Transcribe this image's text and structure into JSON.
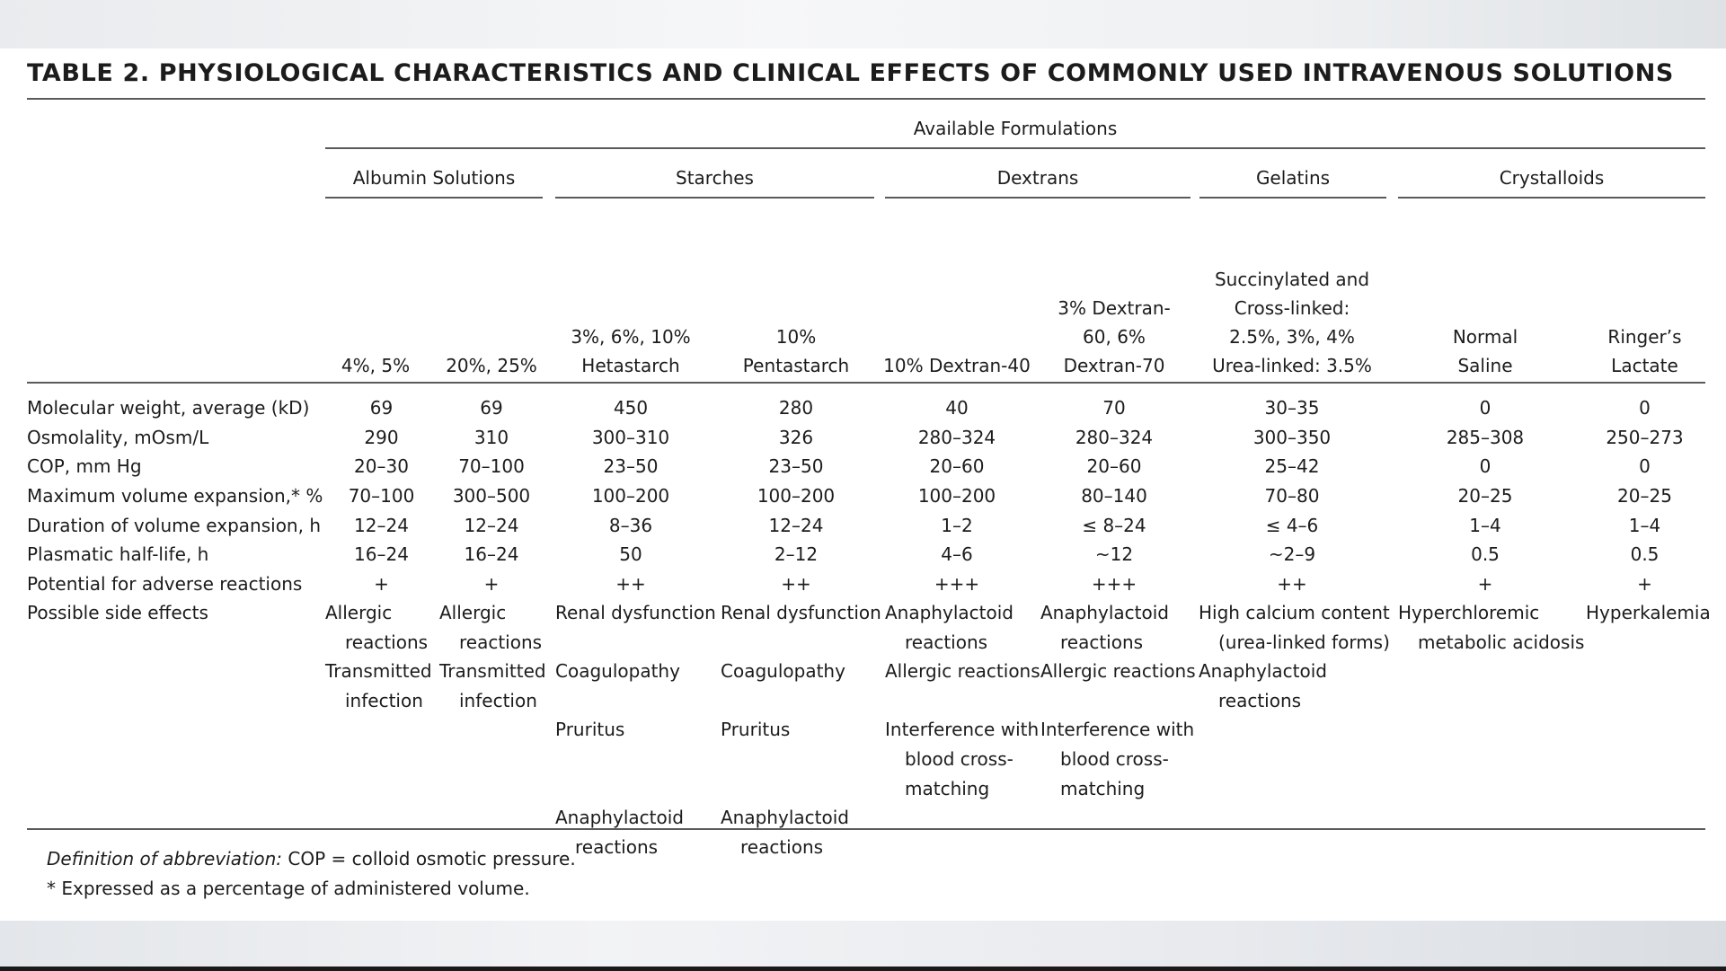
{
  "title": "TABLE 2. PHYSIOLOGICAL CHARACTERISTICS AND CLINICAL EFFECTS OF COMMONLY USED INTRAVENOUS SOLUTIONS",
  "super_header": "Available Formulations",
  "groups": [
    "Albumin Solutions",
    "Starches",
    "Dextrans",
    "Gelatins",
    "Crystalloids"
  ],
  "columns": [
    [
      "4%, 5%"
    ],
    [
      "20%, 25%"
    ],
    [
      "3%, 6%, 10%",
      "Hetastarch"
    ],
    [
      "10%",
      "Pentastarch"
    ],
    [
      "10% Dextran-40"
    ],
    [
      "3% Dextran-",
      "60, 6%",
      "Dextran-70"
    ],
    [
      "Succinylated and",
      "Cross-linked:",
      "2.5%, 3%, 4%",
      "Urea-linked: 3.5%"
    ],
    [
      "Normal",
      "Saline"
    ],
    [
      "Ringer’s",
      "Lactate"
    ]
  ],
  "rows": [
    {
      "label": "Molecular weight, average (kD)",
      "values": [
        "69",
        "69",
        "450",
        "280",
        "40",
        "70",
        "30–35",
        "0",
        "0"
      ]
    },
    {
      "label": "Osmolality, mOsm/L",
      "values": [
        "290",
        "310",
        "300–310",
        "326",
        "280–324",
        "280–324",
        "300–350",
        "285–308",
        "250–273"
      ]
    },
    {
      "label": "COP, mm Hg",
      "values": [
        "20–30",
        "70–100",
        "23–50",
        "23–50",
        "20–60",
        "20–60",
        "25–42",
        "0",
        "0"
      ]
    },
    {
      "label": "Maximum volume expansion,* %",
      "values": [
        "70–100",
        "300–500",
        "100–200",
        "100–200",
        "100–200",
        "80–140",
        "70–80",
        "20–25",
        "20–25"
      ]
    },
    {
      "label": "Duration of volume expansion, h",
      "values": [
        "12–24",
        "12–24",
        "8–36",
        "12–24",
        "1–2",
        "≤ 8–24",
        "≤ 4–6",
        "1–4",
        "1–4"
      ]
    },
    {
      "label": "Plasmatic half-life, h",
      "values": [
        "16–24",
        "16–24",
        "50",
        "2–12",
        "4–6",
        "~12",
        "~2–9",
        "0.5",
        "0.5"
      ]
    },
    {
      "label": "Potential for adverse reactions",
      "values": [
        "+",
        "+",
        "++",
        "++",
        "+++",
        "+++",
        "++",
        "+",
        "+"
      ]
    }
  ],
  "side_effects": {
    "label": "Possible side effects",
    "cols": [
      [
        "Allergic",
        "reactions",
        "Transmitted",
        "infection"
      ],
      [
        "Allergic",
        "reactions",
        "Transmitted",
        "infection"
      ],
      [
        "Renal dysfunction",
        "",
        "Coagulopathy",
        "",
        "Pruritus",
        "",
        "",
        "Anaphylactoid",
        "reactions"
      ],
      [
        "Renal dysfunction",
        "",
        "Coagulopathy",
        "",
        "Pruritus",
        "",
        "",
        "Anaphylactoid",
        "reactions"
      ],
      [
        "Anaphylactoid",
        "reactions",
        "Allergic reactions",
        "",
        "Interference with",
        "blood cross-",
        "matching"
      ],
      [
        "Anaphylactoid",
        "reactions",
        "Allergic reactions",
        "",
        "Interference with",
        "blood cross-",
        "matching"
      ],
      [
        "High calcium content",
        "(urea-linked forms)",
        "Anaphylactoid",
        "reactions"
      ],
      [
        "Hyperchloremic",
        "metabolic acidosis"
      ],
      [
        "Hyperkalemia"
      ]
    ]
  },
  "footnotes": {
    "definition_label": "Definition of abbreviation:",
    "definition_text": " COP = colloid osmotic pressure.",
    "asterisk": "* Expressed as a percentage of administered volume."
  }
}
